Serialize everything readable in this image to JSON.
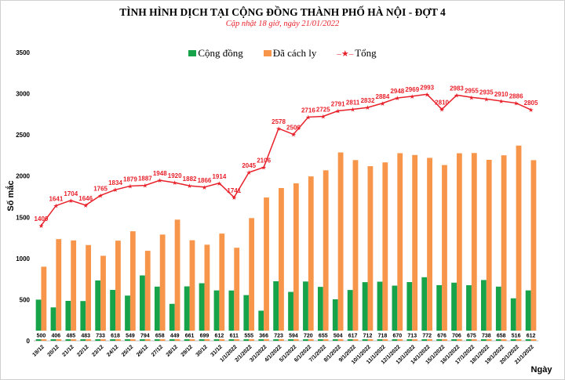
{
  "chart_data": {
    "type": "bar+line",
    "title": "TÌNH HÌNH DỊCH TẠI CỘNG ĐỒNG THÀNH PHỐ HÀ NỘI - ĐỢT 4",
    "subtitle": "Cập nhật 18 giờ, ngày 21/01/2022",
    "xlabel": "Ngày",
    "ylabel": "Số mắc",
    "ylim": [
      0,
      3500
    ],
    "yticks": [
      0,
      500,
      1000,
      1500,
      2000,
      2500,
      3000,
      3500
    ],
    "stacked": false,
    "legend_position": "top",
    "grid": false,
    "categories": [
      "19/12",
      "20/12",
      "21/12",
      "22/12",
      "23/12",
      "24/12",
      "25/12",
      "26/12",
      "27/12",
      "28/12",
      "29/12",
      "30/12",
      "31/12",
      "1/1/2022",
      "2/1/2022",
      "3/1/2022",
      "4/1/2022",
      "5/1/2022",
      "6/1/2022",
      "7/1/2022",
      "8/1/2022",
      "9/1/2022",
      "10/1/2022",
      "11/1/2022",
      "12/1/2022",
      "13/1/2022",
      "14/1/2022",
      "15/1/2022",
      "16/1/2022",
      "17/1/2022",
      "18/1/2022",
      "19/1/2022",
      "20/1/2022",
      "21/1/2022"
    ],
    "series": [
      {
        "name": "Cộng đồng",
        "type": "bar",
        "color": "#16a34a",
        "values": [
          500,
          406,
          485,
          483,
          733,
          618,
          549,
          794,
          658,
          449,
          661,
          699,
          612,
          611,
          555,
          366,
          723,
          594,
          720,
          655,
          504,
          617,
          712,
          718,
          670,
          713,
          772,
          676,
          706,
          675,
          738,
          658,
          516,
          612
        ]
      },
      {
        "name": "Đã cách ly",
        "type": "bar",
        "color": "#f7964a",
        "values": [
          900,
          1235,
          1219,
          1163,
          1032,
          1216,
          1330,
          1093,
          1290,
          1471,
          1221,
          1167,
          1302,
          1130,
          1490,
          1740,
          1855,
          1912,
          1996,
          2070,
          2287,
          2194,
          2120,
          2166,
          2278,
          2256,
          2221,
          2134,
          2277,
          2280,
          2197,
          2252,
          2370,
          2193
        ]
      },
      {
        "name": "Tổng",
        "type": "line",
        "color": "#e8202a",
        "values": [
          1400,
          1641,
          1704,
          1646,
          1765,
          1834,
          1879,
          1887,
          1948,
          1920,
          1882,
          1866,
          1914,
          1741,
          2045,
          2106,
          2578,
          2506,
          2716,
          2725,
          2791,
          2811,
          2832,
          2884,
          2948,
          2969,
          2993,
          2810,
          2983,
          2955,
          2935,
          2910,
          2886,
          2805
        ]
      }
    ]
  }
}
